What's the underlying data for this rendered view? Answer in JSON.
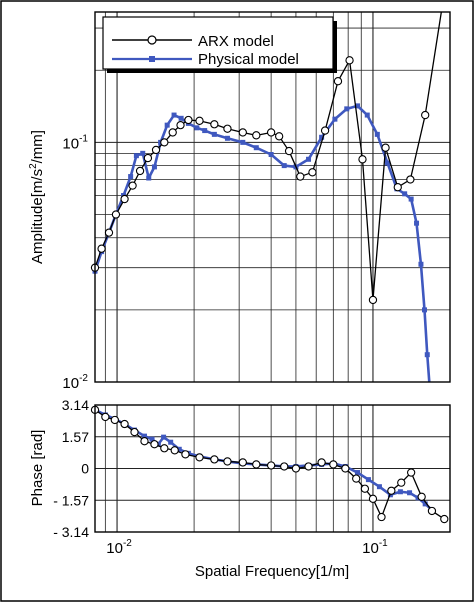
{
  "chart_data": [
    {
      "type": "line",
      "name": "amplitude",
      "ylabel": "Amplitude[m/s",
      "ylabel_sup": "2",
      "ylabel_tail": "/mm]",
      "xscale": "log",
      "yscale": "log",
      "xlim": [
        0.0082,
        0.2
      ],
      "ylim": [
        0.01,
        0.35
      ],
      "grid": true,
      "legend_position": "top-left",
      "yticks": [
        {
          "value": 0.1,
          "base": "10",
          "exp": "-1"
        },
        {
          "value": 0.01,
          "base": "10",
          "exp": "-2"
        }
      ],
      "series": [
        {
          "name": "ARX model",
          "color": "#000000",
          "marker": "open-circle",
          "x": [
            0.0082,
            0.0087,
            0.0093,
            0.0099,
            0.0107,
            0.0115,
            0.0123,
            0.0132,
            0.0142,
            0.0153,
            0.0165,
            0.0177,
            0.019,
            0.021,
            0.024,
            0.027,
            0.031,
            0.035,
            0.04,
            0.043,
            0.047,
            0.052,
            0.058,
            0.065,
            0.073,
            0.081,
            0.091,
            0.1,
            0.112,
            0.125,
            0.14,
            0.16,
            0.185
          ],
          "y": [
            0.03,
            0.036,
            0.042,
            0.05,
            0.058,
            0.066,
            0.076,
            0.086,
            0.093,
            0.1,
            0.11,
            0.118,
            0.124,
            0.123,
            0.119,
            0.114,
            0.11,
            0.107,
            0.11,
            0.106,
            0.092,
            0.072,
            0.075,
            0.112,
            0.18,
            0.22,
            0.085,
            0.022,
            0.095,
            0.065,
            0.07,
            0.13,
            0.38
          ]
        },
        {
          "name": "Physical model",
          "color": "#3f58bf",
          "marker": "filled-square",
          "x": [
            0.0082,
            0.0087,
            0.0093,
            0.0099,
            0.0106,
            0.0113,
            0.0119,
            0.0126,
            0.0133,
            0.014,
            0.0148,
            0.0157,
            0.0167,
            0.0178,
            0.019,
            0.0205,
            0.022,
            0.024,
            0.027,
            0.031,
            0.035,
            0.04,
            0.045,
            0.05,
            0.056,
            0.063,
            0.071,
            0.079,
            0.087,
            0.095,
            0.104,
            0.114,
            0.124,
            0.133,
            0.141,
            0.148,
            0.154,
            0.159,
            0.163,
            0.166
          ],
          "y": [
            0.029,
            0.035,
            0.042,
            0.05,
            0.06,
            0.072,
            0.088,
            0.09,
            0.071,
            0.079,
            0.1,
            0.118,
            0.13,
            0.126,
            0.12,
            0.115,
            0.112,
            0.108,
            0.104,
            0.1,
            0.095,
            0.089,
            0.08,
            0.079,
            0.085,
            0.105,
            0.125,
            0.138,
            0.142,
            0.13,
            0.108,
            0.082,
            0.064,
            0.061,
            0.058,
            0.046,
            0.031,
            0.02,
            0.013,
            0.0098
          ]
        }
      ]
    },
    {
      "type": "line",
      "name": "phase",
      "ylabel": "Phase [rad]",
      "xlabel": "Spatial Frequency[1/m]",
      "xscale": "log",
      "xlim": [
        0.0082,
        0.2
      ],
      "ylim": [
        -3.14,
        3.14
      ],
      "grid": true,
      "yticks": [
        {
          "value": 3.14,
          "label": "3.14"
        },
        {
          "value": 1.57,
          "label": "1.57"
        },
        {
          "value": 0,
          "label": "0"
        },
        {
          "value": -1.57,
          "label": "- 1.57"
        },
        {
          "value": -3.14,
          "label": "- 3.14"
        }
      ],
      "xticks": [
        {
          "value": 0.01,
          "base": "10",
          "exp": "-2"
        },
        {
          "value": 0.1,
          "base": "10",
          "exp": "-1"
        }
      ],
      "series": [
        {
          "name": "ARX model",
          "color": "#000000",
          "marker": "open-circle",
          "x": [
            0.0082,
            0.009,
            0.0098,
            0.0107,
            0.0117,
            0.0128,
            0.014,
            0.0153,
            0.0168,
            0.0185,
            0.021,
            0.024,
            0.027,
            0.031,
            0.035,
            0.04,
            0.045,
            0.05,
            0.056,
            0.063,
            0.07,
            0.078,
            0.086,
            0.093,
            0.1,
            0.108,
            0.118,
            0.129,
            0.141,
            0.155,
            0.17,
            0.19
          ],
          "y": [
            2.9,
            2.55,
            2.4,
            2.2,
            1.8,
            1.35,
            1.2,
            1.0,
            0.9,
            0.7,
            0.55,
            0.45,
            0.35,
            0.3,
            0.2,
            0.15,
            0.1,
            0.0,
            0.1,
            0.3,
            0.2,
            0.0,
            -0.5,
            -1.0,
            -1.5,
            -2.4,
            -1.1,
            -0.7,
            -0.2,
            -1.4,
            -2.1,
            -2.5
          ]
        },
        {
          "name": "Physical model",
          "color": "#3f58bf",
          "marker": "filled-square",
          "x": [
            0.0082,
            0.009,
            0.0098,
            0.0107,
            0.0117,
            0.0128,
            0.0137,
            0.0145,
            0.0152,
            0.0162,
            0.0175,
            0.019,
            0.021,
            0.024,
            0.027,
            0.031,
            0.035,
            0.04,
            0.045,
            0.05,
            0.056,
            0.063,
            0.07,
            0.078,
            0.087,
            0.096,
            0.106,
            0.117,
            0.128,
            0.139,
            0.15,
            0.16,
            0.17
          ],
          "y": [
            2.9,
            2.65,
            2.45,
            2.2,
            1.9,
            1.6,
            1.45,
            1.2,
            1.55,
            1.3,
            0.95,
            0.75,
            0.6,
            0.45,
            0.35,
            0.25,
            0.2,
            0.15,
            0.1,
            0.1,
            0.15,
            0.2,
            0.25,
            0.1,
            -0.2,
            -0.55,
            -0.9,
            -1.3,
            -1.15,
            -1.2,
            -1.45,
            -1.75,
            -2.05
          ]
        }
      ]
    }
  ]
}
